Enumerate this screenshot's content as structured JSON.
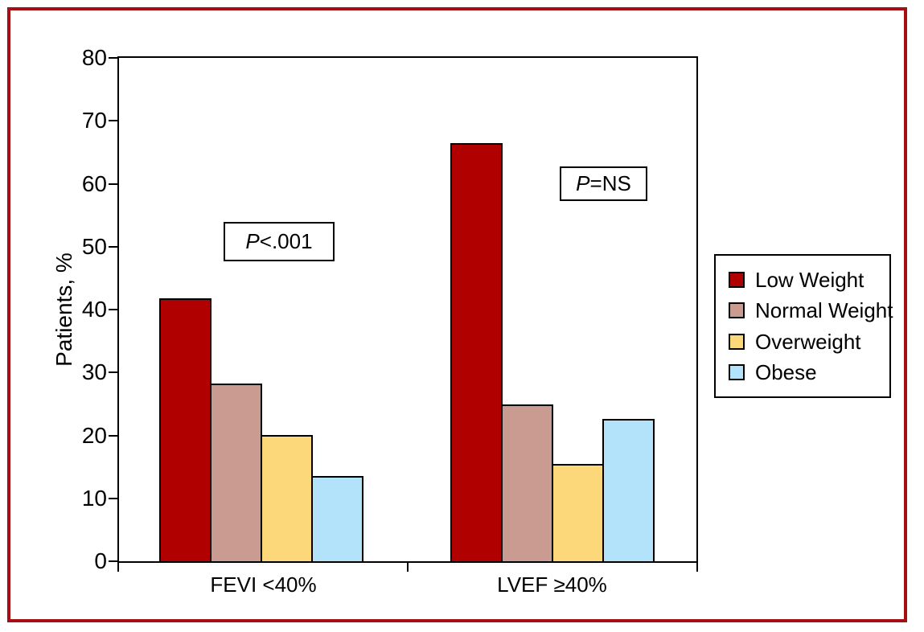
{
  "figure": {
    "frame_color": "#A50E13",
    "background_color": "#FFFFFF"
  },
  "chart_data": {
    "type": "bar",
    "title": "",
    "xlabel": "",
    "ylabel": "Patients, %",
    "ylim": [
      0,
      80
    ],
    "yticks": [
      0,
      10,
      20,
      30,
      40,
      50,
      60,
      70,
      80
    ],
    "grid": false,
    "categories": [
      "FEVI <40%",
      "LVEF ≥40%"
    ],
    "series": [
      {
        "name": "Low Weight",
        "color": "#B00000",
        "values": [
          41.8,
          66.4
        ]
      },
      {
        "name": "Normal Weight",
        "color": "#CA9B90",
        "values": [
          28.2,
          24.9
        ]
      },
      {
        "name": "Overweight",
        "color": "#FDD87B",
        "values": [
          20.1,
          15.5
        ]
      },
      {
        "name": "Obese",
        "color": "#B3E3FB",
        "values": [
          13.5,
          22.6
        ]
      }
    ],
    "legend": {
      "position": "right",
      "entries": [
        "Low Weight",
        "Normal Weight",
        "Overweight",
        "Obese"
      ]
    },
    "annotations": [
      {
        "p": "P",
        "rest": "<.001"
      },
      {
        "p": "P",
        "rest": "=NS"
      }
    ]
  }
}
